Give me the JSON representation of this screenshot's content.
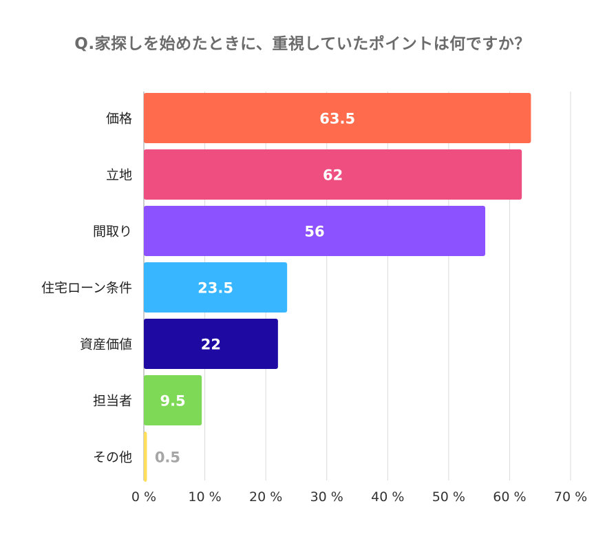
{
  "chart_data": {
    "type": "bar",
    "orientation": "horizontal",
    "title": "Q.家探しを始めたときに、重視していたポイントは何ですか？",
    "xlabel": "",
    "ylabel": "",
    "xlim": [
      0,
      70
    ],
    "ticks": [
      0,
      10,
      20,
      30,
      40,
      50,
      60,
      70
    ],
    "tick_labels": [
      "0 %",
      "10 %",
      "20 %",
      "30 %",
      "40 %",
      "50 %",
      "60 %",
      "70 %"
    ],
    "grid": true,
    "categories": [
      "価格",
      "立地",
      "間取り",
      "住宅ローン条件",
      "資産価値",
      "担当者",
      "その他"
    ],
    "values": [
      63.5,
      62,
      56,
      23.5,
      22,
      9.5,
      0.5
    ],
    "value_labels": [
      "63.5",
      "62",
      "56",
      "23.5",
      "22",
      "9.5",
      "0.5"
    ],
    "colors": [
      "#ff6b4d",
      "#ee4e80",
      "#8c52ff",
      "#38b6ff",
      "#1e0aa3",
      "#7ed957",
      "#ffde59"
    ],
    "label_colors": [
      "#ffffff",
      "#ffffff",
      "#ffffff",
      "#ffffff",
      "#ffffff",
      "#ffffff",
      "#a6a6a6"
    ]
  }
}
